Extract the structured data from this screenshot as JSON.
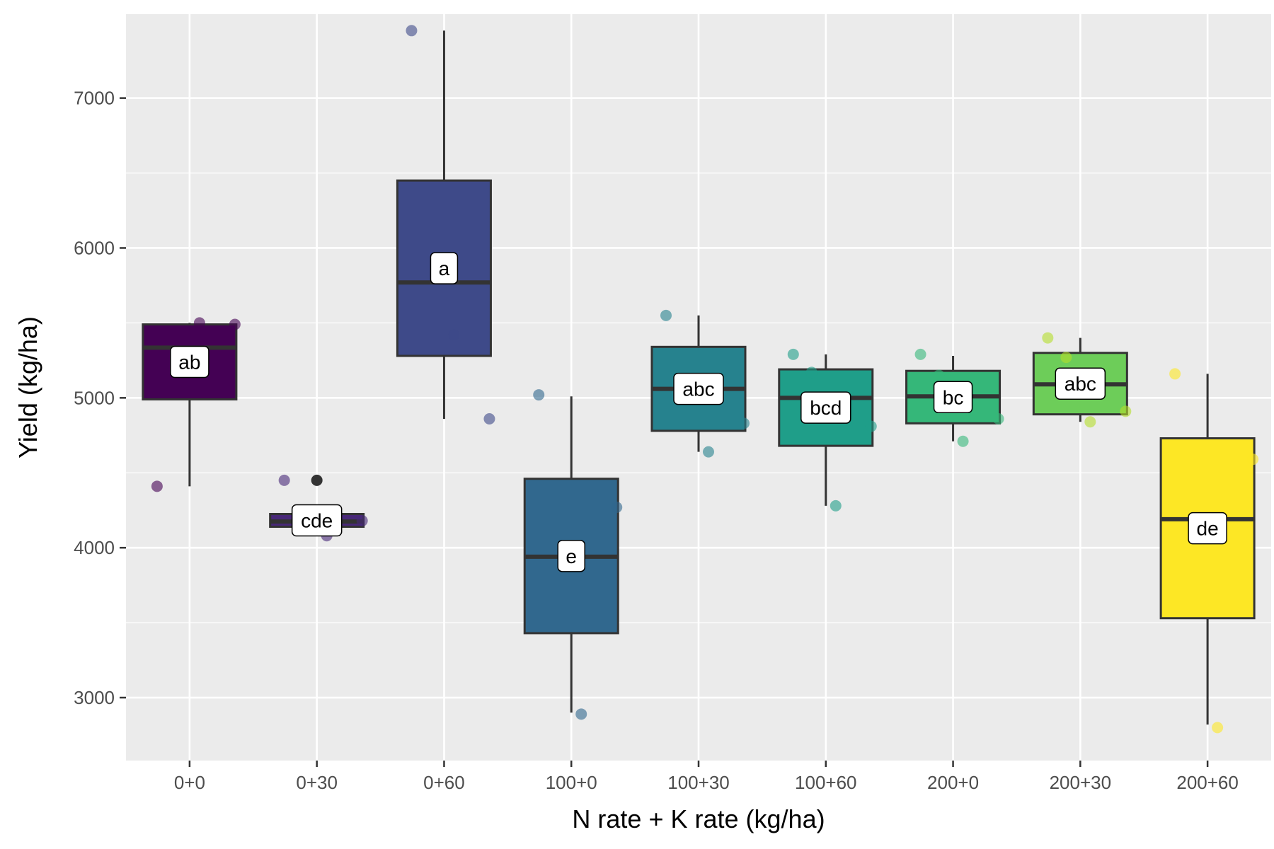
{
  "chart_data": {
    "type": "box",
    "xlabel": "N rate + K rate (kg/ha)",
    "ylabel": "Yield (kg/ha)",
    "ylim": [
      2580,
      7560
    ],
    "yticks": [
      3000,
      4000,
      5000,
      6000,
      7000
    ],
    "grid": true,
    "legend": "none",
    "categories": [
      "0+0",
      "0+30",
      "0+60",
      "100+0",
      "100+30",
      "100+60",
      "200+0",
      "200+30",
      "200+60"
    ],
    "boxes": [
      {
        "category": "0+0",
        "q1": 4990,
        "median": 5335,
        "q3": 5490,
        "whisker_low": 4410,
        "whisker_high": 5500,
        "outliers": [],
        "letter": "ab",
        "color": "#440154",
        "points": [
          4410,
          5500,
          5490
        ]
      },
      {
        "category": "0+30",
        "q1": 4140,
        "median": 4175,
        "q3": 4225,
        "whisker_low": 4090,
        "whisker_high": 4240,
        "outliers": [
          4450
        ],
        "letter": "cde",
        "color": "#482878",
        "points": [
          4450,
          4080,
          4180
        ]
      },
      {
        "category": "0+60",
        "q1": 5280,
        "median": 5770,
        "q3": 6450,
        "whisker_low": 4860,
        "whisker_high": 7450,
        "outliers": [],
        "letter": "a",
        "color": "#3E4A89",
        "points": [
          7450,
          5420,
          4860
        ]
      },
      {
        "category": "100+0",
        "q1": 3430,
        "median": 3940,
        "q3": 4460,
        "whisker_low": 2900,
        "whisker_high": 5010,
        "outliers": [],
        "letter": "e",
        "color": "#31688E",
        "points": [
          5020,
          2890,
          4270
        ]
      },
      {
        "category": "100+30",
        "q1": 4780,
        "median": 5060,
        "q3": 5340,
        "whisker_low": 4640,
        "whisker_high": 5550,
        "outliers": [],
        "letter": "abc",
        "color": "#26828E",
        "points": [
          5550,
          4640,
          4830
        ]
      },
      {
        "category": "100+60",
        "q1": 4680,
        "median": 5000,
        "q3": 5190,
        "whisker_low": 4280,
        "whisker_high": 5290,
        "outliers": [],
        "letter": "bcd",
        "color": "#1F9E89",
        "points": [
          5290,
          4280,
          4810,
          5170
        ]
      },
      {
        "category": "200+0",
        "q1": 4830,
        "median": 5010,
        "q3": 5180,
        "whisker_low": 4710,
        "whisker_high": 5280,
        "outliers": [],
        "letter": "bc",
        "color": "#35B779",
        "points": [
          5290,
          4710,
          4860,
          5150
        ]
      },
      {
        "category": "200+30",
        "q1": 4890,
        "median": 5090,
        "q3": 5300,
        "whisker_low": 4840,
        "whisker_high": 5400,
        "outliers": [],
        "letter": "abc",
        "color": "#6DCD59",
        "points": [
          5400,
          4840,
          4910,
          5270
        ]
      },
      {
        "category": "200+60",
        "q1": 3530,
        "median": 4190,
        "q3": 4730,
        "whisker_low": 2820,
        "whisker_high": 5160,
        "outliers": [],
        "letter": "de",
        "color": "#FDE725",
        "points": [
          5160,
          2800,
          4590
        ]
      }
    ],
    "point_colors": [
      "#440154",
      "#482878",
      "#3E4A89",
      "#31688E",
      "#26828E",
      "#1F9E89",
      "#35B779",
      "#B4DE2C",
      "#FDE725"
    ]
  }
}
